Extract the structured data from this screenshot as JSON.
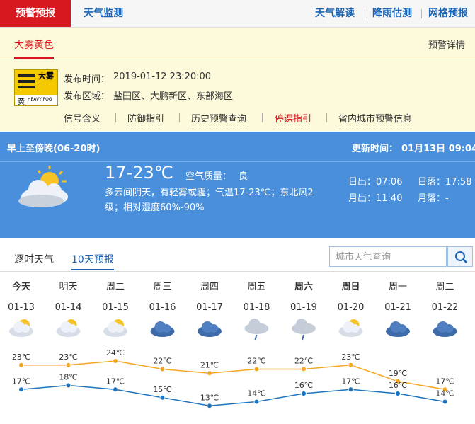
{
  "nav": {
    "active": "预警预报",
    "monitor": "天气监测",
    "links": [
      "天气解读",
      "降雨估测",
      "网格预报"
    ]
  },
  "warning": {
    "tab": "大雾黄色",
    "detail": "预警详情",
    "icon_title": "大雾",
    "icon_level": "黄",
    "icon_en": "HEAVY FOG",
    "time_label": "发布时间：",
    "time": "2019-01-12 23:20:00",
    "area_label": "发布区域：",
    "area": "盐田区、大鹏新区、东部海区",
    "links": [
      "信号含义",
      "防御指引",
      "历史预警查询",
      "停课指引",
      "省内城市预警信息"
    ]
  },
  "today": {
    "period": "早上至傍晚(06-20时)",
    "update_label": "更新时间：",
    "update": "01月13日 09:04",
    "temp": "17-23℃",
    "aqi_label": "空气质量：",
    "aqi": "良",
    "desc_1": "多云间阴天，有轻雾或霾；气温17-23℃；东北风2",
    "desc_2": "级；相对湿度60%-90%",
    "sunrise": "日出：07:06",
    "sunset": "日落：17:58",
    "moonrise": "月出：11:40",
    "moonset": "月落：-"
  },
  "tabs": [
    "逐时天气",
    "10天预报"
  ],
  "search_placeholder": "城市天气查询",
  "forecast": {
    "days": [
      "今天",
      "明天",
      "周二",
      "周三",
      "周四",
      "周五",
      "周六",
      "周日",
      "周一",
      "周二"
    ],
    "dates": [
      "01-13",
      "01-14",
      "01-15",
      "01-16",
      "01-17",
      "01-18",
      "01-19",
      "01-20",
      "01-21",
      "01-22"
    ],
    "high": {
      "color": "#f5a623",
      "values": [
        23,
        23,
        24,
        22,
        21,
        22,
        22,
        23,
        19,
        17
      ],
      "value_labels": [
        "23℃",
        "23℃",
        "24℃",
        "22℃",
        "21℃",
        "22℃",
        "22℃",
        "23℃",
        "19℃",
        "17℃"
      ]
    },
    "low": {
      "color": "#1e73be",
      "values": [
        17,
        18,
        17,
        15,
        13,
        14,
        16,
        17,
        16,
        14
      ],
      "value_labels": [
        "17℃",
        "18℃",
        "17℃",
        "15℃",
        "13℃",
        "14℃",
        "16℃",
        "17℃",
        "16℃",
        "14℃"
      ]
    }
  }
}
